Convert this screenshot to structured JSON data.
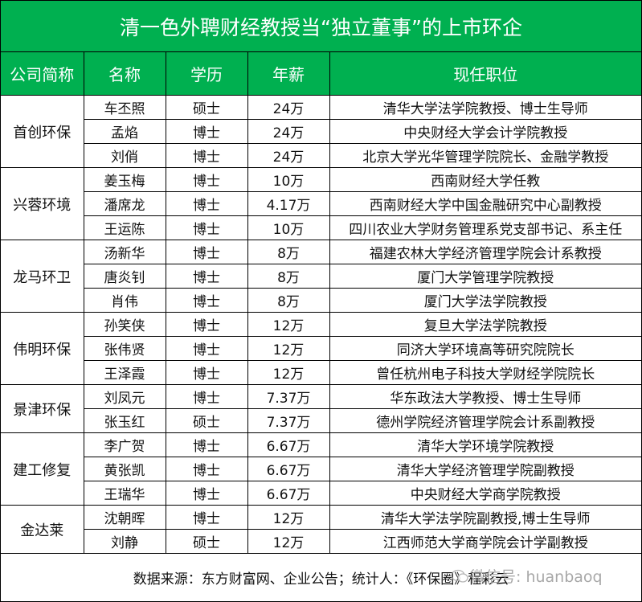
{
  "title": "清一色外聘财经教授当“独立董事”的上市环企",
  "headers": [
    "公司简称",
    "名称",
    "学历",
    "年薪",
    "现任职位"
  ],
  "groups": [
    {
      "company": "首创环保",
      "rows": [
        [
          "车丕照",
          "硕士",
          "24万",
          "清华大学法学院教授、博士生导师"
        ],
        [
          "孟焰",
          "博士",
          "24万",
          "中央财经大学会计学院教授"
        ],
        [
          "刘俏",
          "博士",
          "24万",
          "北京大学光华管理学院院长、金融学教授"
        ]
      ]
    },
    {
      "company": "兴蓉环境",
      "rows": [
        [
          "姜玉梅",
          "博士",
          "10万",
          "西南财经大学任教"
        ],
        [
          "潘席龙",
          "博士",
          "4.17万",
          "西南财经大学中国金融研究中心副教授"
        ],
        [
          "王运陈",
          "博士",
          "10万",
          "四川农业大学财务管理系党支部书记、系主任"
        ]
      ]
    },
    {
      "company": "龙马环卫",
      "rows": [
        [
          "汤新华",
          "博士",
          "8万",
          "福建农林大学经济管理学院会计系教授"
        ],
        [
          "唐炎钊",
          "博士",
          "8万",
          "厦门大学管理学院教授"
        ],
        [
          "肖伟",
          "博士",
          "8万",
          "厦门大学法学院教授"
        ]
      ]
    },
    {
      "company": "伟明环保",
      "rows": [
        [
          "孙笑侠",
          "博士",
          "12万",
          "复旦大学法学院教授"
        ],
        [
          "张伟贤",
          "博士",
          "12万",
          "同济大学环境高等研究院院长"
        ],
        [
          "王泽霞",
          "博士",
          "12万",
          "曾任杭州电子科技大学财经学院院长"
        ]
      ]
    },
    {
      "company": "景津环保",
      "rows": [
        [
          "刘凤元",
          "博士",
          "7.37万",
          "华东政法大学教授、博士生导师"
        ],
        [
          "张玉红",
          "硕士",
          "7.37万",
          "德州学院经济管理学院会计系副教授"
        ]
      ]
    },
    {
      "company": "建工修复",
      "rows": [
        [
          "李广贺",
          "博士",
          "6.67万",
          "清华大学环境学院教授"
        ],
        [
          "黄张凯",
          "博士",
          "6.67万",
          "清华大学经济管理学院副教授"
        ],
        [
          "王瑞华",
          "博士",
          "6.67万",
          "中央财经大学商学院教授"
        ]
      ]
    },
    {
      "company": "金达莱",
      "rows": [
        [
          "沈朝晖",
          "博士",
          "12万",
          "清华大学法学院副教授,博士生导师"
        ],
        [
          "刘静",
          "硕士",
          "12万",
          "江西师范大学商学院会计学副教授"
        ]
      ]
    }
  ],
  "footer": "数据来源：东方财富网、企业公告；统计人：《环保圈》程彩云",
  "watermark": "微信号: huanbaoq",
  "colors": {
    "header_bg": "#00B050",
    "header_text": "#FFFFFF"
  }
}
